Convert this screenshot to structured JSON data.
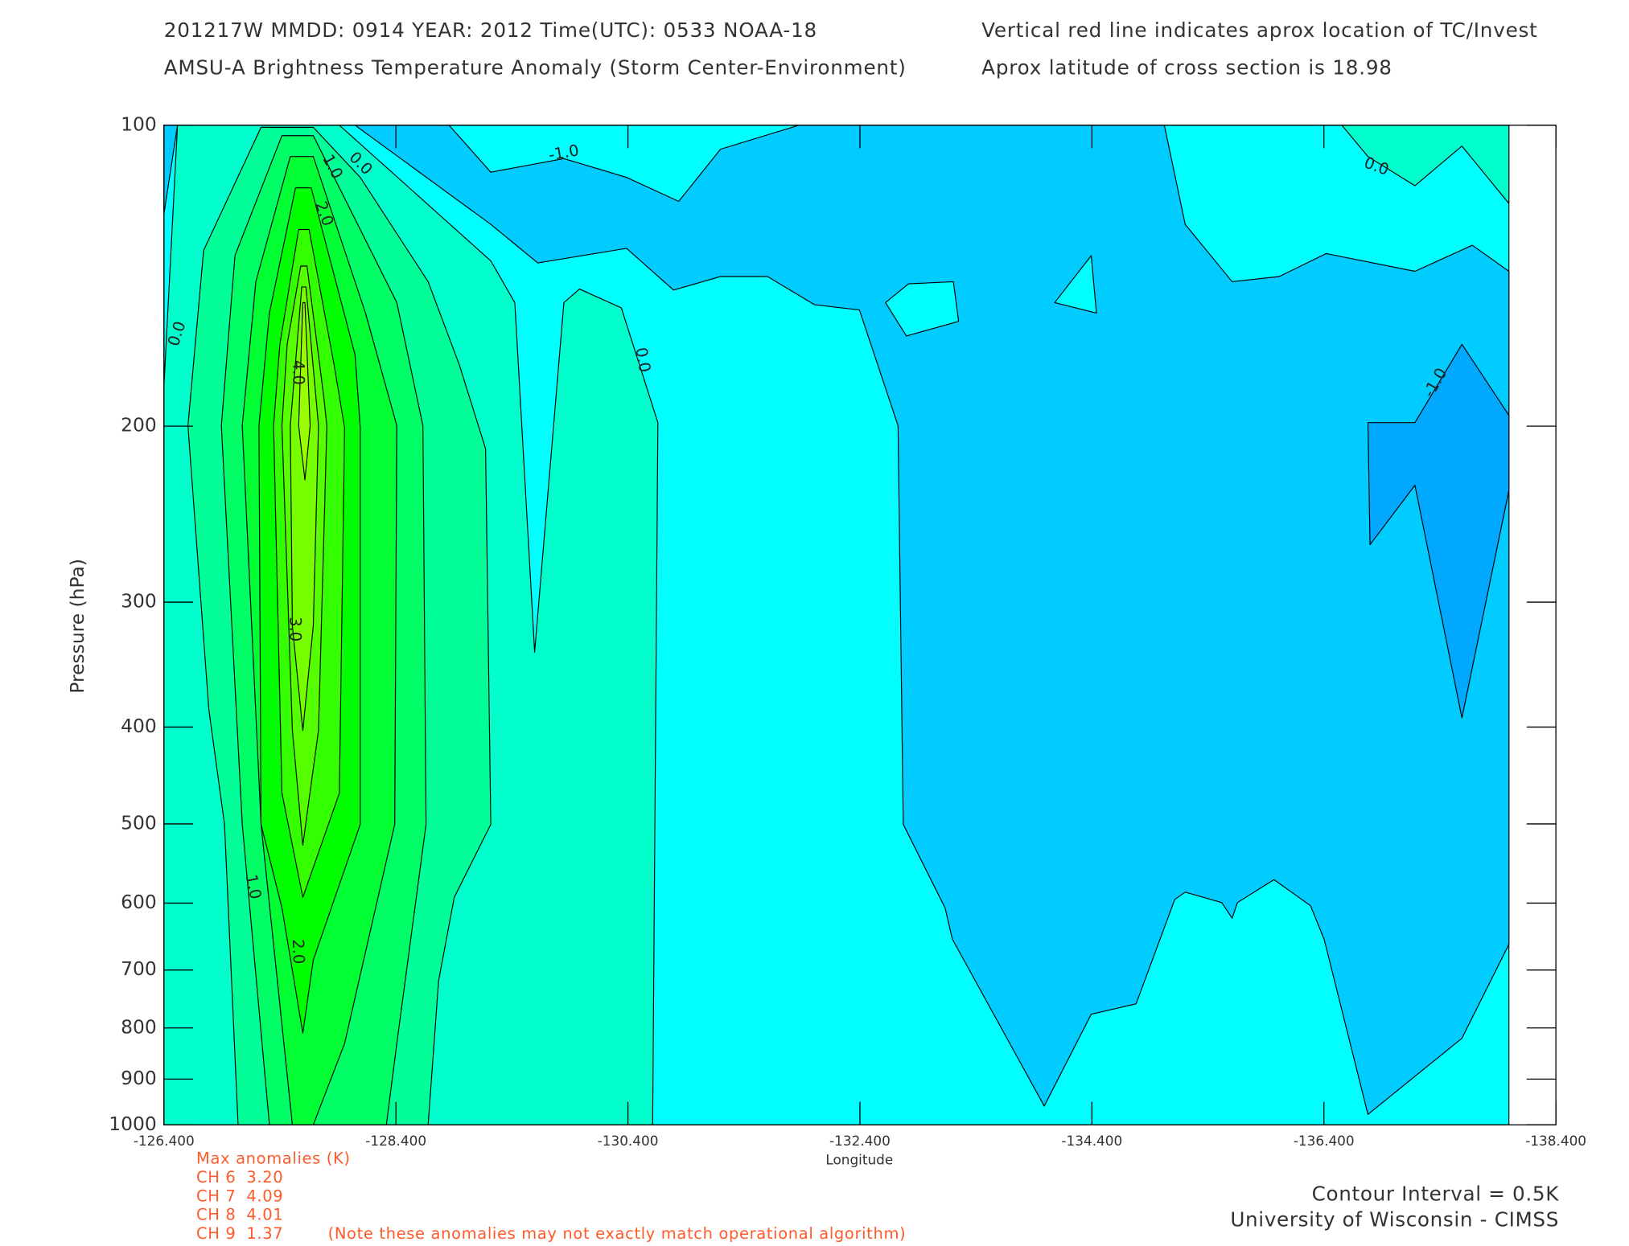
{
  "chart_data": {
    "type": "contour",
    "title_lines": [
      "201217W  MMDD: 0914 YEAR: 2012 Time(UTC): 0533 NOAA-18",
      "AMSU-A Brightness Temperature Anomaly (Storm Center-Environment)"
    ],
    "notes": [
      "Vertical red line indicates aprox location of TC/Invest",
      "Aprox latitude of cross section is 18.98"
    ],
    "x_label": "Longitude",
    "y_label": "Pressure (hPa)",
    "xlim": [
      -126.4,
      -138.4
    ],
    "xticks": [
      {
        "value": -126.4,
        "label": "-126.400"
      },
      {
        "value": -128.4,
        "label": "-128.400"
      },
      {
        "value": -130.4,
        "label": "-130.400"
      },
      {
        "value": -132.4,
        "label": "-132.400"
      },
      {
        "value": -134.4,
        "label": "-134.400"
      },
      {
        "value": -136.4,
        "label": "-136.400"
      },
      {
        "value": -138.4,
        "label": "-138.400"
      }
    ],
    "ylim": [
      100,
      1000
    ],
    "y_scale": "log",
    "yticks": [
      100,
      200,
      300,
      400,
      500,
      600,
      700,
      800,
      900,
      1000
    ],
    "levels": [
      -1.5,
      -1.0,
      -0.5,
      0.0,
      0.5,
      1.0,
      1.5,
      2.0,
      2.5,
      3.0,
      3.5,
      4.0
    ],
    "colors": [
      "#00a8ff",
      "#00ccff",
      "#00ffff",
      "#00ffcc",
      "#00ff99",
      "#00ff66",
      "#00ff33",
      "#00ff00",
      "#33ff00",
      "#55ff00",
      "#77ff00",
      "#99ff00"
    ],
    "contour_labels": [
      {
        "value": 0,
        "label": "0.0"
      },
      {
        "value": -1,
        "label": "-1.0"
      },
      {
        "value": 1,
        "label": "1.0"
      },
      {
        "value": 2,
        "label": "2.0"
      },
      {
        "value": 0,
        "label": "0.0"
      },
      {
        "value": 4,
        "label": "4.0"
      },
      {
        "value": 3,
        "label": "3.0"
      },
      {
        "value": 0,
        "label": "0.0"
      },
      {
        "value": 1,
        "label": "1.0"
      },
      {
        "value": 2,
        "label": "2.0"
      },
      {
        "value": 0,
        "label": "0.0"
      },
      {
        "value": -1,
        "label": "-1.0"
      }
    ],
    "max_anomalies": {
      "title": "Max anomalies (K)",
      "rows": [
        [
          "CH 6",
          "3.20"
        ],
        [
          "CH 7",
          "4.09"
        ],
        [
          "CH 8",
          "4.01"
        ],
        [
          "CH 9",
          "1.37"
        ]
      ],
      "note": "(Note these anomalies may not exactly match operational algorithm)"
    },
    "footer": [
      "Contour Interval = 0.5K",
      "University of Wisconsin - CIMSS"
    ]
  }
}
